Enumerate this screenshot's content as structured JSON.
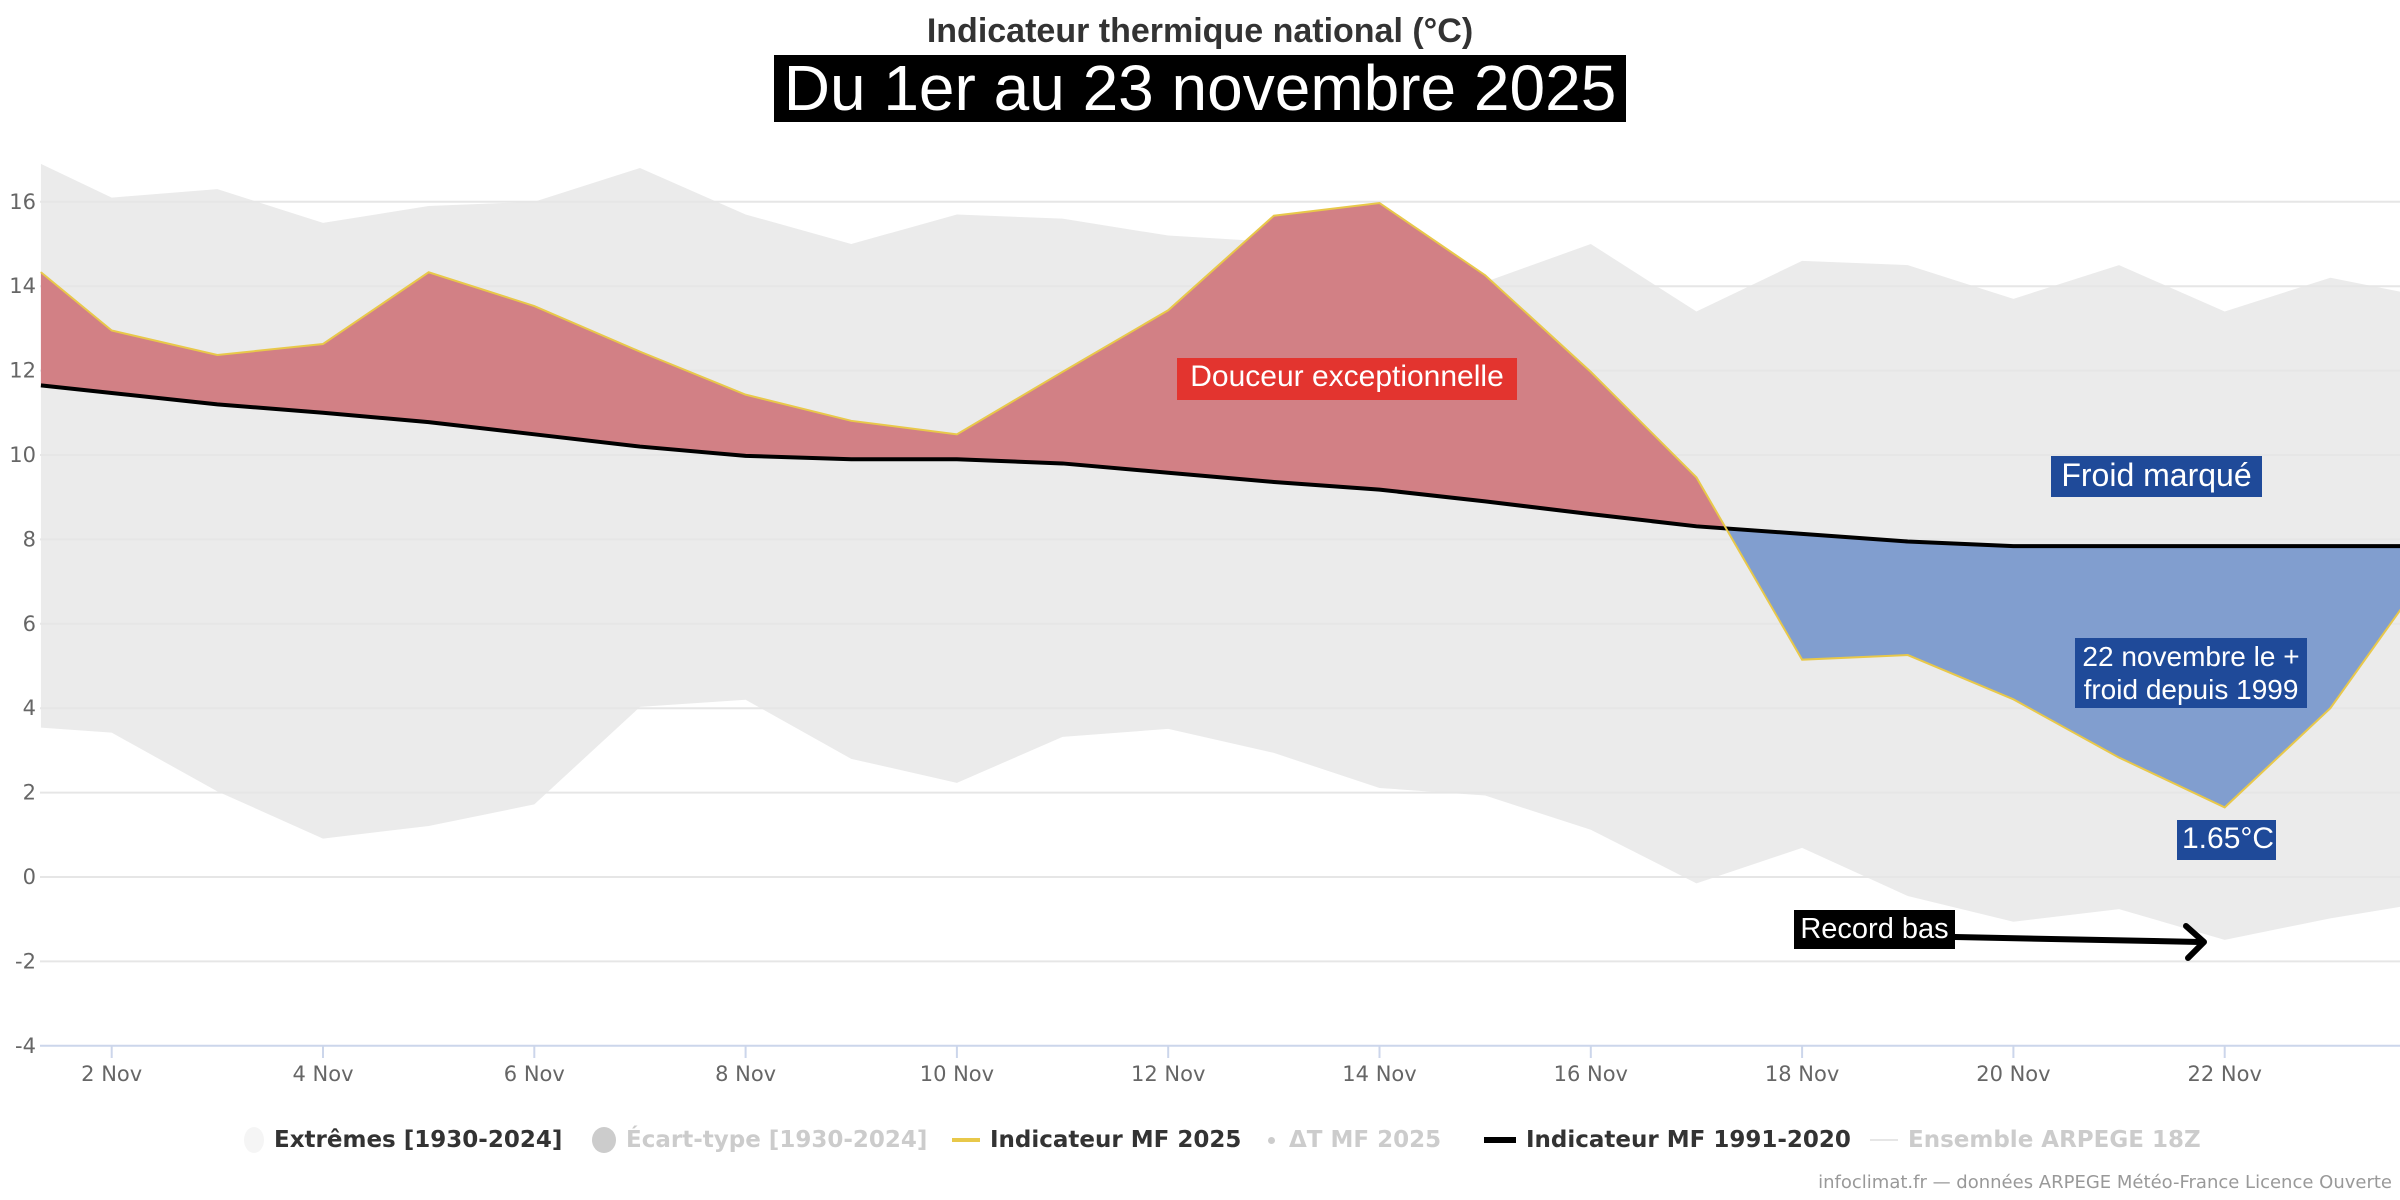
{
  "chart_data": {
    "type": "area",
    "title": "Indicateur thermique national (°C)",
    "subtitle": "Du 1er au 23 novembre 2025",
    "xlabel": "",
    "ylabel": "",
    "xlim": [
      1.33,
      23.7
    ],
    "ylim": [
      -4,
      17
    ],
    "y_ticks": [
      -4,
      -2,
      0,
      2,
      4,
      6,
      8,
      10,
      12,
      14,
      16
    ],
    "x_ticks": [
      {
        "day": 2,
        "label": "2 Nov"
      },
      {
        "day": 4,
        "label": "4 Nov"
      },
      {
        "day": 6,
        "label": "6 Nov"
      },
      {
        "day": 8,
        "label": "8 Nov"
      },
      {
        "day": 10,
        "label": "10 Nov"
      },
      {
        "day": 12,
        "label": "12 Nov"
      },
      {
        "day": 14,
        "label": "14 Nov"
      },
      {
        "day": 16,
        "label": "16 Nov"
      },
      {
        "day": 18,
        "label": "18 Nov"
      },
      {
        "day": 20,
        "label": "20 Nov"
      },
      {
        "day": 22,
        "label": "22 Nov"
      }
    ],
    "grid": true,
    "x": [
      1.33,
      2,
      3,
      4,
      5,
      6,
      7,
      8,
      9,
      10,
      11,
      12,
      13,
      14,
      15,
      16,
      17,
      18,
      19,
      20,
      21,
      22,
      23,
      23.7
    ],
    "series": [
      {
        "name": "Extrêmes [1930-2024] max",
        "color": "#ebebeb",
        "values": [
          16.9,
          16.1,
          16.3,
          15.5,
          15.9,
          16.0,
          16.8,
          15.7,
          15.0,
          15.7,
          15.6,
          15.2,
          15.05,
          14.6,
          14.1,
          15.0,
          13.4,
          14.6,
          14.5,
          13.7,
          14.5,
          13.4,
          14.2,
          13.85
        ]
      },
      {
        "name": "Extrêmes [1930-2024] min",
        "color": "#ebebeb",
        "values": [
          3.54,
          3.42,
          2.03,
          0.91,
          1.21,
          1.72,
          4.03,
          4.2,
          2.8,
          2.23,
          3.32,
          3.51,
          2.94,
          2.11,
          1.93,
          1.12,
          -0.15,
          0.69,
          -0.45,
          -1.06,
          -0.76,
          -1.49,
          -0.98,
          -0.69
        ]
      },
      {
        "name": "Indicateur MF 2025",
        "color": "#e8c84a",
        "values": [
          14.33,
          12.95,
          12.37,
          12.63,
          14.33,
          13.53,
          12.45,
          11.43,
          10.81,
          10.49,
          11.97,
          13.43,
          15.67,
          15.97,
          14.26,
          11.97,
          9.47,
          5.15,
          5.26,
          4.21,
          2.83,
          1.65,
          4.0,
          6.46
        ]
      },
      {
        "name": "Indicateur MF 1991-2020",
        "color": "#000000",
        "values": [
          11.65,
          11.47,
          11.2,
          11.0,
          10.78,
          10.49,
          10.2,
          9.98,
          9.9,
          9.9,
          9.8,
          9.58,
          9.36,
          9.18,
          8.9,
          8.6,
          8.31,
          8.13,
          7.95,
          7.84,
          7.84,
          7.84,
          7.84,
          7.84
        ]
      }
    ],
    "fill_colors": {
      "warm": "#d28085",
      "cold": "#819ecf",
      "extremes": "#ebebeb",
      "grid": "#e6e6e6",
      "axis": "#ccd6eb"
    },
    "annotations": {
      "warm": "Douceur exceptionnelle",
      "cold": "Froid marqué",
      "coldest_line1": "22 novembre le +",
      "coldest_line2": "froid depuis 1999",
      "min_value": "1.65°C",
      "record": "Record bas"
    },
    "annotation_colors": {
      "warm": "#e3342f",
      "cold": "#1f4a99",
      "record": "#000000"
    },
    "legend": {
      "placement": "bottom",
      "items": [
        {
          "label": "Extrêmes [1930-2024]",
          "visible": true
        },
        {
          "label": "Écart-type [1930-2024]",
          "visible": false
        },
        {
          "label": "Indicateur MF 2025",
          "visible": true
        },
        {
          "label": "ΔT MF 2025",
          "visible": false
        },
        {
          "label": "Indicateur MF 1991-2020",
          "visible": true
        },
        {
          "label": "Ensemble ARPEGE 18Z",
          "visible": false
        }
      ]
    },
    "credits": "infoclimat.fr — données ARPEGE Météo-France Licence Ouverte"
  }
}
